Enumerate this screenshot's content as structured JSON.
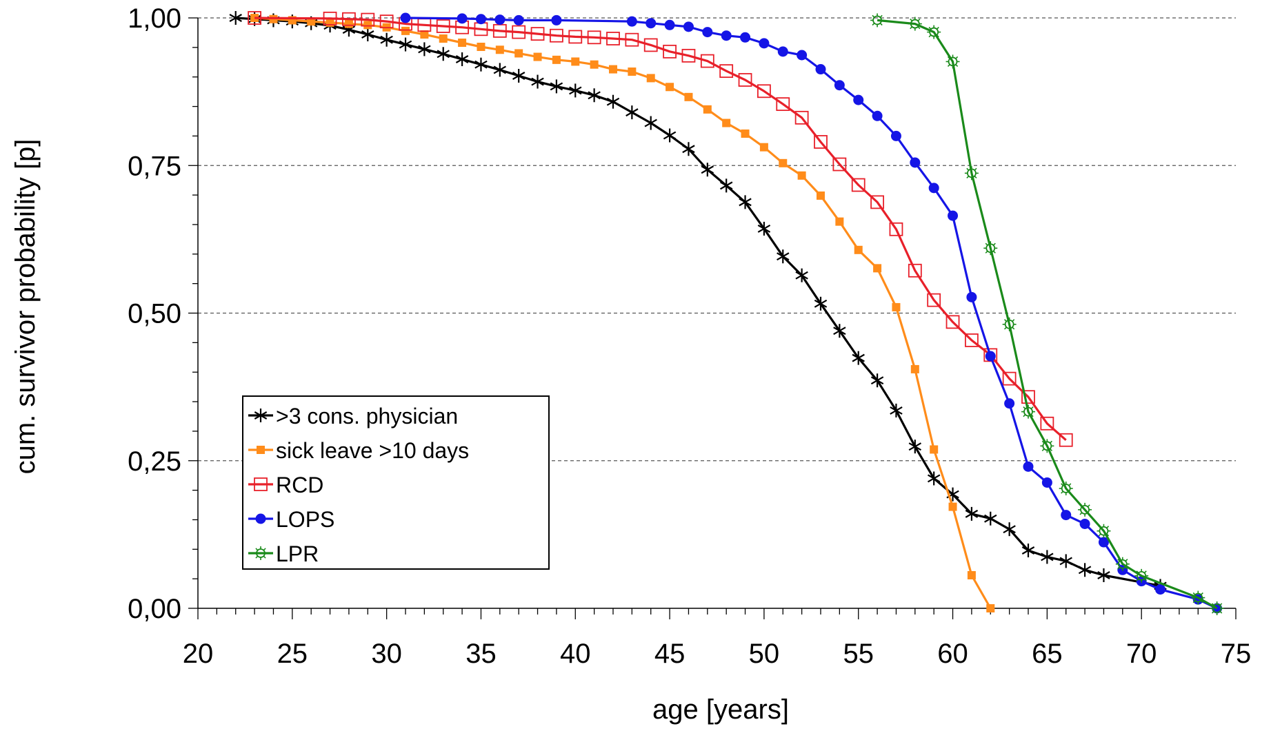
{
  "chart_data": {
    "type": "line",
    "title": "",
    "xlabel": "age [years]",
    "ylabel": "cum. survivor probability [p]",
    "xlim": [
      20,
      75
    ],
    "ylim": [
      0,
      1
    ],
    "x_ticks": [
      20,
      25,
      30,
      35,
      40,
      45,
      50,
      55,
      60,
      65,
      70,
      75
    ],
    "x_tick_labels": [
      "20",
      "25",
      "30",
      "35",
      "40",
      "45",
      "50",
      "55",
      "60",
      "65",
      "70",
      "75"
    ],
    "y_ticks": [
      0,
      0.25,
      0.5,
      0.75,
      1
    ],
    "y_tick_labels": [
      "0,00",
      "0,25",
      "0,50",
      "0,75",
      "1,00"
    ],
    "grid": "horizontal dashed",
    "legend_position": "bottom-left",
    "series": [
      {
        "name": ">3 cons. physician",
        "color": "#000000",
        "marker": "star",
        "points": [
          [
            22,
            1.0
          ],
          [
            23,
            0.998
          ],
          [
            24,
            0.996
          ],
          [
            25,
            0.994
          ],
          [
            26,
            0.991
          ],
          [
            27,
            0.987
          ],
          [
            28,
            0.98
          ],
          [
            29,
            0.972
          ],
          [
            30,
            0.963
          ],
          [
            31,
            0.955
          ],
          [
            32,
            0.947
          ],
          [
            33,
            0.939
          ],
          [
            34,
            0.93
          ],
          [
            35,
            0.921
          ],
          [
            36,
            0.912
          ],
          [
            37,
            0.902
          ],
          [
            38,
            0.892
          ],
          [
            39,
            0.884
          ],
          [
            40,
            0.877
          ],
          [
            41,
            0.869
          ],
          [
            42,
            0.858
          ],
          [
            43,
            0.84
          ],
          [
            44,
            0.822
          ],
          [
            45,
            0.801
          ],
          [
            46,
            0.778
          ],
          [
            47,
            0.743
          ],
          [
            48,
            0.716
          ],
          [
            49,
            0.688
          ],
          [
            50,
            0.643
          ],
          [
            51,
            0.596
          ],
          [
            52,
            0.564
          ],
          [
            53,
            0.516
          ],
          [
            54,
            0.47
          ],
          [
            55,
            0.424
          ],
          [
            56,
            0.386
          ],
          [
            57,
            0.335
          ],
          [
            58,
            0.274
          ],
          [
            59,
            0.22
          ],
          [
            60,
            0.193
          ],
          [
            61,
            0.16
          ],
          [
            62,
            0.152
          ],
          [
            63,
            0.134
          ],
          [
            64,
            0.098
          ],
          [
            65,
            0.087
          ],
          [
            66,
            0.08
          ],
          [
            67,
            0.065
          ],
          [
            68,
            0.056
          ],
          [
            71,
            0.038
          ]
        ]
      },
      {
        "name": "sick leave >10 days",
        "color": "#ff8c1a",
        "marker": "square-filled",
        "points": [
          [
            23,
            1.0
          ],
          [
            24,
            0.998
          ],
          [
            25,
            0.996
          ],
          [
            26,
            0.994
          ],
          [
            27,
            0.992
          ],
          [
            28,
            0.99
          ],
          [
            29,
            0.988
          ],
          [
            30,
            0.984
          ],
          [
            31,
            0.978
          ],
          [
            32,
            0.972
          ],
          [
            33,
            0.965
          ],
          [
            34,
            0.958
          ],
          [
            35,
            0.951
          ],
          [
            36,
            0.946
          ],
          [
            37,
            0.94
          ],
          [
            38,
            0.934
          ],
          [
            39,
            0.929
          ],
          [
            40,
            0.926
          ],
          [
            41,
            0.921
          ],
          [
            42,
            0.913
          ],
          [
            43,
            0.909
          ],
          [
            44,
            0.898
          ],
          [
            45,
            0.883
          ],
          [
            46,
            0.866
          ],
          [
            47,
            0.845
          ],
          [
            48,
            0.822
          ],
          [
            49,
            0.804
          ],
          [
            50,
            0.781
          ],
          [
            51,
            0.754
          ],
          [
            52,
            0.733
          ],
          [
            53,
            0.699
          ],
          [
            54,
            0.655
          ],
          [
            55,
            0.607
          ],
          [
            56,
            0.576
          ],
          [
            57,
            0.51
          ],
          [
            58,
            0.405
          ],
          [
            59,
            0.269
          ],
          [
            60,
            0.172
          ],
          [
            61,
            0.056
          ],
          [
            62,
            0.0
          ]
        ]
      },
      {
        "name": "RCD",
        "color": "#e8202a",
        "marker": "square-open",
        "points": [
          [
            23,
            1.0
          ],
          [
            27,
            0.999
          ],
          [
            28,
            0.998
          ],
          [
            29,
            0.997
          ],
          [
            30,
            0.994
          ],
          [
            31,
            0.99
          ],
          [
            32,
            0.988
          ],
          [
            33,
            0.986
          ],
          [
            34,
            0.984
          ],
          [
            35,
            0.981
          ],
          [
            36,
            0.978
          ],
          [
            37,
            0.976
          ],
          [
            38,
            0.973
          ],
          [
            39,
            0.97
          ],
          [
            40,
            0.968
          ],
          [
            41,
            0.967
          ],
          [
            42,
            0.965
          ],
          [
            43,
            0.963
          ],
          [
            44,
            0.954
          ],
          [
            45,
            0.943
          ],
          [
            46,
            0.936
          ],
          [
            47,
            0.927
          ],
          [
            48,
            0.91
          ],
          [
            49,
            0.895
          ],
          [
            50,
            0.876
          ],
          [
            51,
            0.854
          ],
          [
            52,
            0.831
          ],
          [
            53,
            0.79
          ],
          [
            54,
            0.752
          ],
          [
            55,
            0.717
          ],
          [
            56,
            0.688
          ],
          [
            57,
            0.642
          ],
          [
            58,
            0.572
          ],
          [
            59,
            0.522
          ],
          [
            60,
            0.485
          ],
          [
            61,
            0.454
          ],
          [
            62,
            0.429
          ],
          [
            63,
            0.389
          ],
          [
            64,
            0.358
          ],
          [
            65,
            0.313
          ],
          [
            66,
            0.285
          ]
        ]
      },
      {
        "name": "LOPS",
        "color": "#1515e6",
        "marker": "circle-filled",
        "points": [
          [
            31,
            1.0
          ],
          [
            34,
            0.999
          ],
          [
            35,
            0.998
          ],
          [
            36,
            0.997
          ],
          [
            37,
            0.996
          ],
          [
            39,
            0.996
          ],
          [
            43,
            0.994
          ],
          [
            44,
            0.991
          ],
          [
            45,
            0.988
          ],
          [
            46,
            0.985
          ],
          [
            47,
            0.976
          ],
          [
            48,
            0.97
          ],
          [
            49,
            0.967
          ],
          [
            50,
            0.957
          ],
          [
            51,
            0.943
          ],
          [
            52,
            0.937
          ],
          [
            53,
            0.913
          ],
          [
            54,
            0.886
          ],
          [
            55,
            0.861
          ],
          [
            56,
            0.834
          ],
          [
            57,
            0.8
          ],
          [
            58,
            0.755
          ],
          [
            59,
            0.712
          ],
          [
            60,
            0.665
          ],
          [
            61,
            0.527
          ],
          [
            62,
            0.427
          ],
          [
            63,
            0.347
          ],
          [
            64,
            0.24
          ],
          [
            65,
            0.213
          ],
          [
            66,
            0.158
          ],
          [
            67,
            0.143
          ],
          [
            68,
            0.112
          ],
          [
            69,
            0.065
          ],
          [
            70,
            0.046
          ],
          [
            71,
            0.032
          ],
          [
            73,
            0.015
          ],
          [
            74,
            0.0
          ]
        ]
      },
      {
        "name": "LPR",
        "color": "#1a8a1a",
        "marker": "sun-open",
        "points": [
          [
            56,
            0.996
          ],
          [
            58,
            0.99
          ],
          [
            59,
            0.976
          ],
          [
            60,
            0.926
          ],
          [
            61,
            0.737
          ],
          [
            62,
            0.61
          ],
          [
            63,
            0.481
          ],
          [
            64,
            0.333
          ],
          [
            65,
            0.275
          ],
          [
            66,
            0.203
          ],
          [
            67,
            0.167
          ],
          [
            68,
            0.131
          ],
          [
            69,
            0.075
          ],
          [
            70,
            0.055
          ],
          [
            73,
            0.018
          ],
          [
            74,
            0.0
          ]
        ]
      }
    ]
  }
}
